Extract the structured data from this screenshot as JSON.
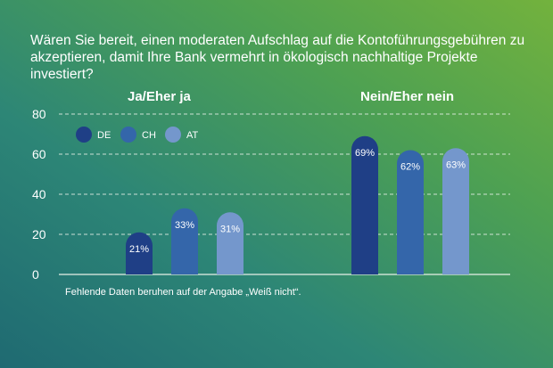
{
  "title_line1": "Wären Sie bereit, einen moderaten Aufschlag auf die Kontoführungsgebühren zu",
  "title_line2": "akzeptieren, damit Ihre Bank vermehrt in ökologisch nachhaltige Projekte investiert?",
  "footnote": "Fehlende Daten beruhen auf der Angabe „Weiß nicht“.",
  "colors": {
    "DE": "#1f3f86",
    "CH": "#3466aa",
    "AT": "#7497cc"
  },
  "chart_data": {
    "type": "bar",
    "title": "Wären Sie bereit, einen moderaten Aufschlag auf die Kontoführungsgebühren zu akzeptieren, damit Ihre Bank vermehrt in ökologisch nachhaltige Projekte investiert?",
    "categories": [
      "Ja/Eher ja",
      "Nein/Eher nein"
    ],
    "series": [
      {
        "name": "DE",
        "values": [
          21,
          69
        ],
        "labels": [
          "21%",
          "69%"
        ]
      },
      {
        "name": "CH",
        "values": [
          33,
          62
        ],
        "labels": [
          "33%",
          "62%"
        ]
      },
      {
        "name": "AT",
        "values": [
          31,
          63
        ],
        "labels": [
          "31%",
          "63%"
        ]
      }
    ],
    "ylim": [
      0,
      80
    ],
    "yticks": [
      0,
      20,
      40,
      60,
      80
    ],
    "grid": true,
    "legend": "top-left",
    "xlabel": "",
    "ylabel": ""
  }
}
